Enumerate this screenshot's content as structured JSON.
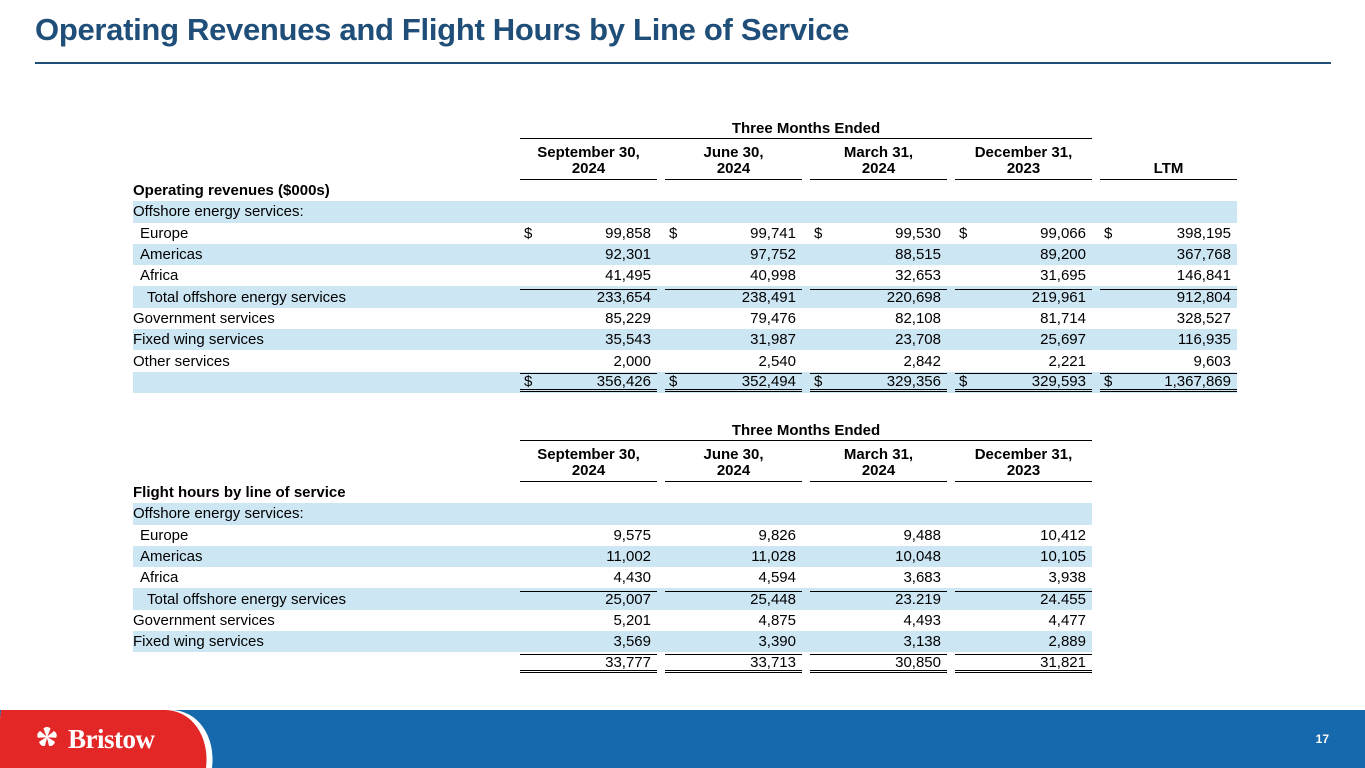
{
  "slide": {
    "title": "Operating Revenues and Flight Hours by Line of Service"
  },
  "footer": {
    "page_number": "17",
    "logo_text": "Bristow",
    "logo_icon": "bristow-star-icon"
  },
  "colors": {
    "title_blue": "#1F4E79",
    "row_highlight": "#CDE6F4",
    "footer_blue": "#1769AE",
    "logo_red": "#E32726"
  },
  "revenue_table": {
    "span_header": "Three Months Ended",
    "columns": [
      "September 30,\n2024",
      "June 30,\n2024",
      "March 31,\n2024",
      "December 31,\n2023",
      "LTM"
    ],
    "rows": [
      {
        "label": "Operating revenues ($000s)",
        "bold": true,
        "cells": [
          "",
          "",
          "",
          "",
          ""
        ]
      },
      {
        "label": "Offshore energy services:",
        "highlight": true,
        "cells": [
          "",
          "",
          "",
          "",
          ""
        ]
      },
      {
        "label": "Europe",
        "indent": 1,
        "dollar": true,
        "cells": [
          "99,858",
          "99,741",
          "99,530",
          "99,066",
          "398,195"
        ]
      },
      {
        "label": "Americas",
        "indent": 1,
        "highlight": true,
        "cells": [
          "92,301",
          "97,752",
          "88,515",
          "89,200",
          "367,768"
        ]
      },
      {
        "label": "Africa",
        "indent": 1,
        "cells": [
          "41,495",
          "40,998",
          "32,653",
          "31,695",
          "146,841"
        ]
      },
      {
        "label": "Total offshore energy services",
        "indent": 2,
        "highlight": true,
        "rule_top": true,
        "cells": [
          "233,654",
          "238,491",
          "220,698",
          "219,961",
          "912,804"
        ]
      },
      {
        "label": "Government services",
        "cells": [
          "85,229",
          "79,476",
          "82,108",
          "81,714",
          "328,527"
        ]
      },
      {
        "label": "Fixed wing services",
        "highlight": true,
        "cells": [
          "35,543",
          "31,987",
          "23,708",
          "25,697",
          "116,935"
        ]
      },
      {
        "label": "Other services",
        "cells": [
          "2,000",
          "2,540",
          "2,842",
          "2,221",
          "9,603"
        ]
      },
      {
        "label": "",
        "highlight": true,
        "dollar": true,
        "rule_top": true,
        "rule_double_bottom": true,
        "cells": [
          "356,426",
          "352,494",
          "329,356",
          "329,593",
          "1,367,869"
        ]
      }
    ]
  },
  "hours_table": {
    "span_header": "Three Months Ended",
    "columns": [
      "September 30,\n2024",
      "June 30,\n2024",
      "March 31,\n2024",
      "December 31,\n2023"
    ],
    "rows": [
      {
        "label": "Flight hours by line of service",
        "bold": true,
        "cells": [
          "",
          "",
          "",
          ""
        ]
      },
      {
        "label": "Offshore energy services:",
        "highlight": true,
        "cells": [
          "",
          "",
          "",
          ""
        ]
      },
      {
        "label": "Europe",
        "indent": 1,
        "cells": [
          "9,575",
          "9,826",
          "9,488",
          "10,412"
        ]
      },
      {
        "label": "Americas",
        "indent": 1,
        "highlight": true,
        "cells": [
          "11,002",
          "11,028",
          "10,048",
          "10,105"
        ]
      },
      {
        "label": "Africa",
        "indent": 1,
        "cells": [
          "4,430",
          "4,594",
          "3,683",
          "3,938"
        ]
      },
      {
        "label": "Total offshore energy services",
        "indent": 2,
        "highlight": true,
        "rule_top": true,
        "cells": [
          "25,007",
          "25,448",
          "23.219",
          "24.455"
        ]
      },
      {
        "label": "Government services",
        "cells": [
          "5,201",
          "4,875",
          "4,493",
          "4,477"
        ]
      },
      {
        "label": "Fixed wing services",
        "highlight": true,
        "cells": [
          "3,569",
          "3,390",
          "3,138",
          "2,889"
        ]
      },
      {
        "label": "",
        "rule_top": true,
        "rule_double_bottom": true,
        "cells": [
          "33,777",
          "33,713",
          "30,850",
          "31,821"
        ]
      }
    ]
  }
}
